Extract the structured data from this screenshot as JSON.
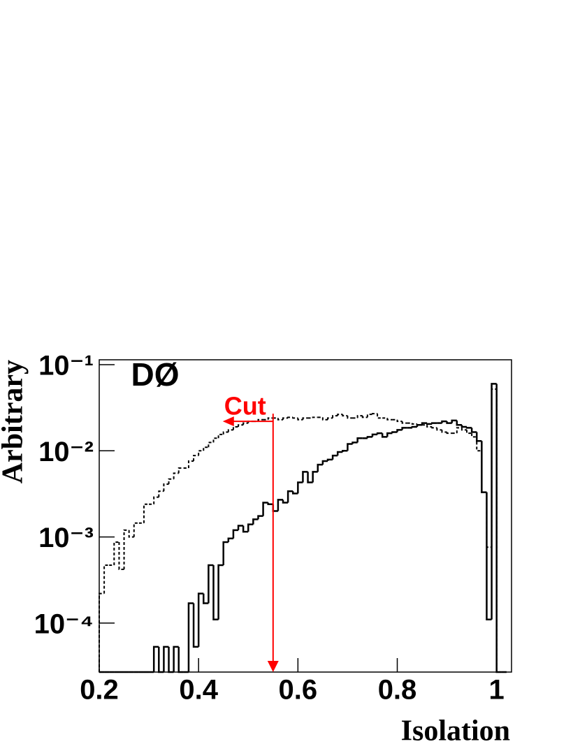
{
  "chart_data": {
    "type": "histogram",
    "label": "DØ",
    "xlabel": "Isolation",
    "ylabel": "Arbitrary",
    "log_y": true,
    "xlim": [
      0.2,
      1.03
    ],
    "ylim": [
      2.7e-05,
      0.114
    ],
    "xticks": [
      0.2,
      0.4,
      0.6,
      0.8,
      1
    ],
    "yticks": [
      {
        "value": 0.1,
        "label": "10⁻¹"
      },
      {
        "value": 0.01,
        "label": "10⁻²"
      },
      {
        "value": 0.001,
        "label": "10⁻³"
      },
      {
        "value": 0.0001,
        "label": "10⁻⁴"
      }
    ],
    "bins": [
      0.2,
      0.21,
      0.22,
      0.23,
      0.24,
      0.25,
      0.26,
      0.27,
      0.28,
      0.29,
      0.3,
      0.31,
      0.32,
      0.33,
      0.34,
      0.35,
      0.36,
      0.37,
      0.38,
      0.39,
      0.4,
      0.41,
      0.42,
      0.43,
      0.44,
      0.45,
      0.46,
      0.47,
      0.48,
      0.49,
      0.5,
      0.51,
      0.52,
      0.53,
      0.54,
      0.55,
      0.56,
      0.57,
      0.58,
      0.59,
      0.6,
      0.61,
      0.62,
      0.63,
      0.64,
      0.65,
      0.66,
      0.67,
      0.68,
      0.69,
      0.7,
      0.71,
      0.72,
      0.73,
      0.74,
      0.75,
      0.76,
      0.77,
      0.78,
      0.79,
      0.8,
      0.81,
      0.82,
      0.83,
      0.84,
      0.85,
      0.86,
      0.87,
      0.88,
      0.89,
      0.9,
      0.91,
      0.92,
      0.93,
      0.94,
      0.95,
      0.96,
      0.97,
      0.98,
      0.99,
      1.0,
      1.01,
      1.02
    ],
    "series": [
      {
        "color": "#000000",
        "style": "dashed",
        "values": [
          0.00022,
          0.00047,
          0.00047,
          0.00087,
          0.00042,
          0.0012,
          0.001,
          0.00145,
          0.00145,
          0.0024,
          0.0024,
          0.0029,
          0.0034,
          0.0041,
          0.0047,
          0.0055,
          0.0063,
          0.0063,
          0.0076,
          0.0088,
          0.01,
          0.011,
          0.0125,
          0.014,
          0.0155,
          0.0165,
          0.0175,
          0.019,
          0.02,
          0.021,
          0.022,
          0.022,
          0.023,
          0.023,
          0.024,
          0.024,
          0.023,
          0.024,
          0.0245,
          0.024,
          0.023,
          0.024,
          0.024,
          0.0245,
          0.0245,
          0.023,
          0.024,
          0.0255,
          0.0265,
          0.0255,
          0.024,
          0.024,
          0.0255,
          0.0245,
          0.0265,
          0.027,
          0.024,
          0.024,
          0.023,
          0.023,
          0.022,
          0.021,
          0.021,
          0.0205,
          0.02,
          0.02,
          0.019,
          0.0185,
          0.0175,
          0.0165,
          0.016,
          0.016,
          0.0185,
          0.0175,
          0.016,
          0.0145,
          0.01,
          0.0033,
          0.00076,
          0.052,
          0,
          0
        ]
      },
      {
        "color": "#000000",
        "style": "solid",
        "values": [
          0,
          0,
          0,
          0,
          0,
          0,
          0,
          0,
          0,
          0,
          0,
          5.3e-05,
          0,
          5.3e-05,
          0,
          5.3e-05,
          0,
          0,
          0.00017,
          5.3e-05,
          0.00022,
          0.00017,
          0.00047,
          0.00011,
          0.00047,
          0.00087,
          0.00096,
          0.0012,
          0.00135,
          0.00115,
          0.0014,
          0.0016,
          0.00175,
          0.0025,
          0.0024,
          0.002,
          0.0027,
          0.0025,
          0.0034,
          0.0032,
          0.0043,
          0.0057,
          0.0043,
          0.0057,
          0.0069,
          0.0076,
          0.0079,
          0.0088,
          0.0097,
          0.01,
          0.012,
          0.0125,
          0.014,
          0.014,
          0.0145,
          0.0155,
          0.016,
          0.0145,
          0.016,
          0.0165,
          0.0175,
          0.0185,
          0.0185,
          0.019,
          0.02,
          0.021,
          0.0205,
          0.021,
          0.021,
          0.022,
          0.021,
          0.0225,
          0.02,
          0.019,
          0.0185,
          0.0165,
          0.013,
          0.0033,
          0.00011,
          0.06,
          0,
          0
        ]
      }
    ],
    "annotations": [
      {
        "text": "Cut",
        "x": 0.55,
        "y": 0.027,
        "color": "#ff0000"
      }
    ]
  }
}
